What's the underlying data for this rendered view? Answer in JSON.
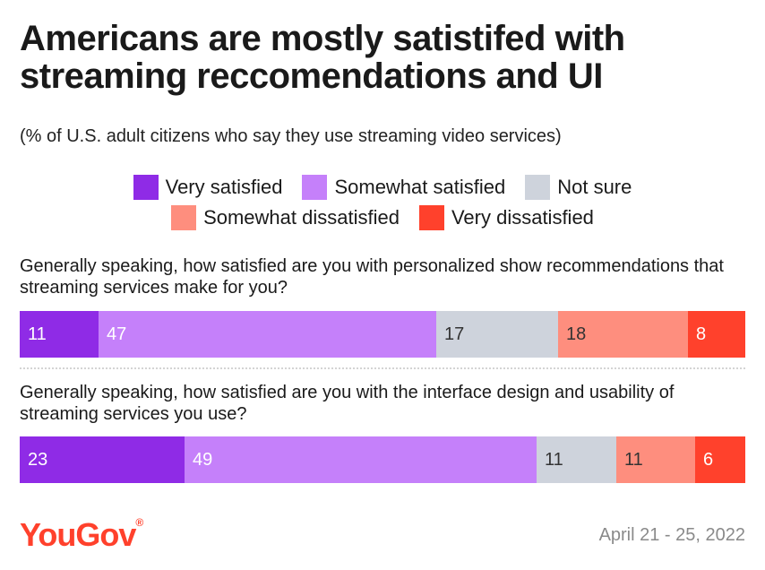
{
  "chart_data": {
    "type": "bar",
    "orientation": "horizontal-stacked",
    "title_lines": [
      "Americans are mostly satistifed with",
      "streaming reccomendations and UI"
    ],
    "subtitle": "(% of U.S. adult citizens who say they use streaming video services)",
    "legend": [
      {
        "label": "Very satisfied",
        "color": "#8f2be6"
      },
      {
        "label": "Somewhat satisfied",
        "color": "#c580fa"
      },
      {
        "label": "Not sure",
        "color": "#ced3dc"
      },
      {
        "label": "Somewhat dissatisfied",
        "color": "#fe8e7e"
      },
      {
        "label": "Very dissatisfied",
        "color": "#ff412c"
      }
    ],
    "categories": [
      "Generally speaking, how satisfied are you with personalized show recommendations that streaming services make for you?",
      "Generally speaking, how satisfied are you with the interface design and usability of streaming services you use?"
    ],
    "series": [
      {
        "name": "Very satisfied",
        "values": [
          11,
          23
        ]
      },
      {
        "name": "Somewhat satisfied",
        "values": [
          47,
          49
        ]
      },
      {
        "name": "Not sure",
        "values": [
          17,
          11
        ]
      },
      {
        "name": "Somewhat dissatisfied",
        "values": [
          18,
          11
        ]
      },
      {
        "name": "Very dissatisfied",
        "values": [
          8,
          6
        ]
      }
    ],
    "xlim": [
      0,
      101
    ]
  },
  "footer": {
    "brand": "YouGov",
    "brand_mark": "®",
    "date": "April 21 - 25, 2022"
  }
}
